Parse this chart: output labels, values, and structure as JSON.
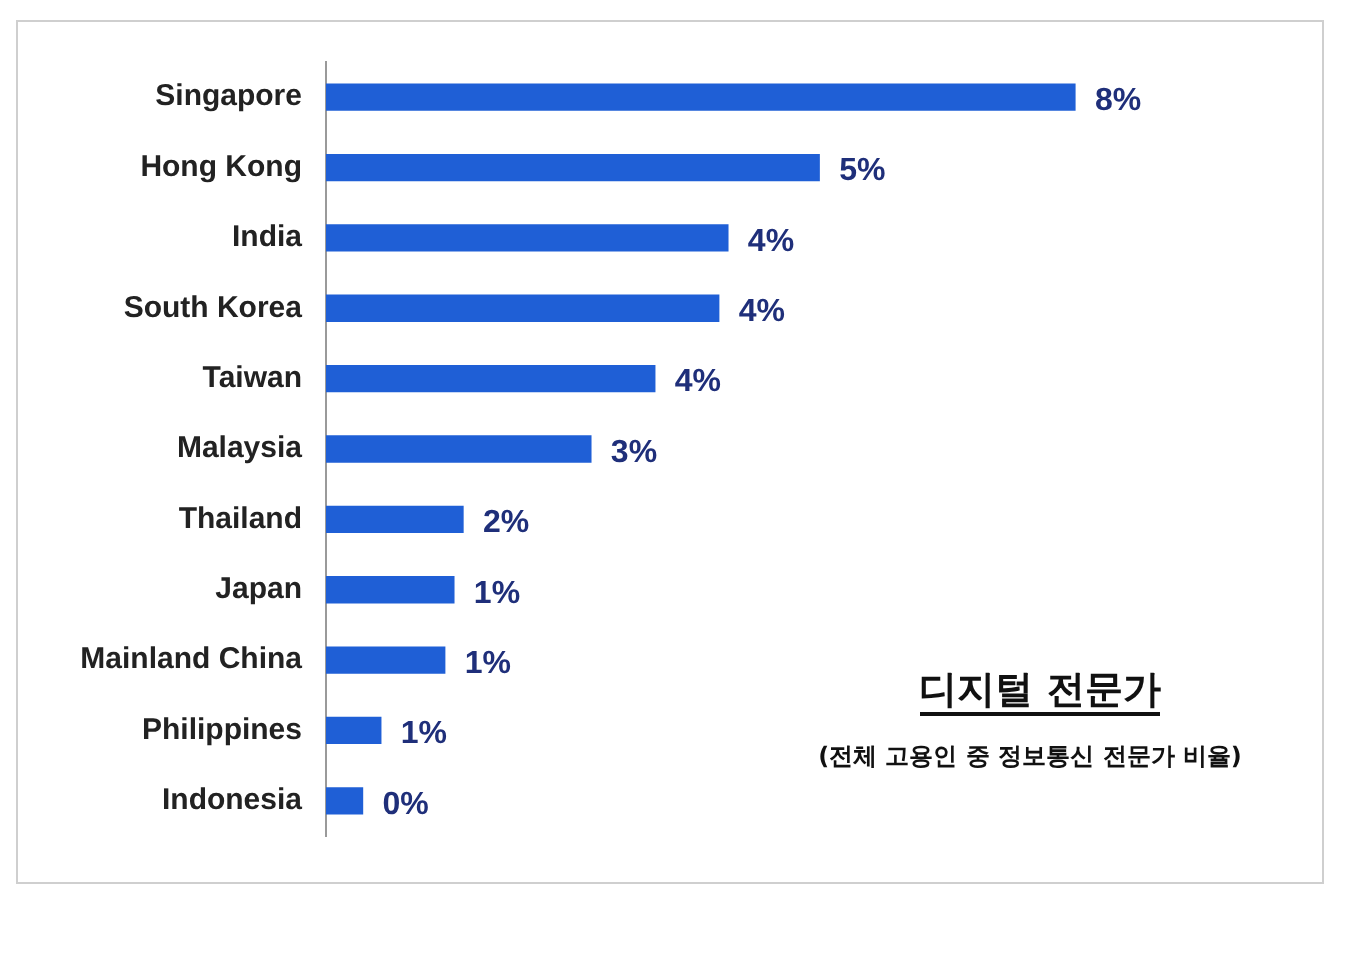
{
  "chart_data": {
    "type": "bar",
    "orientation": "horizontal",
    "title": "디지털 전문가",
    "subtitle": "(전체 고용인 중 정보통신 전문가 비율)",
    "categories": [
      "Singapore",
      "Hong Kong",
      "India",
      "South Korea",
      "Taiwan",
      "Malaysia",
      "Thailand",
      "Japan",
      "Mainland China",
      "Philippines",
      "Indonesia"
    ],
    "values": [
      8.2,
      5.4,
      4.4,
      4.3,
      3.6,
      2.9,
      1.5,
      1.4,
      1.3,
      0.6,
      0.4
    ],
    "value_labels": [
      "8%",
      "5%",
      "4%",
      "4%",
      "4%",
      "3%",
      "2%",
      "1%",
      "1%",
      "1%",
      "0%"
    ],
    "color": "#1f5fd6",
    "tick_labels": "y",
    "legend": false
  }
}
